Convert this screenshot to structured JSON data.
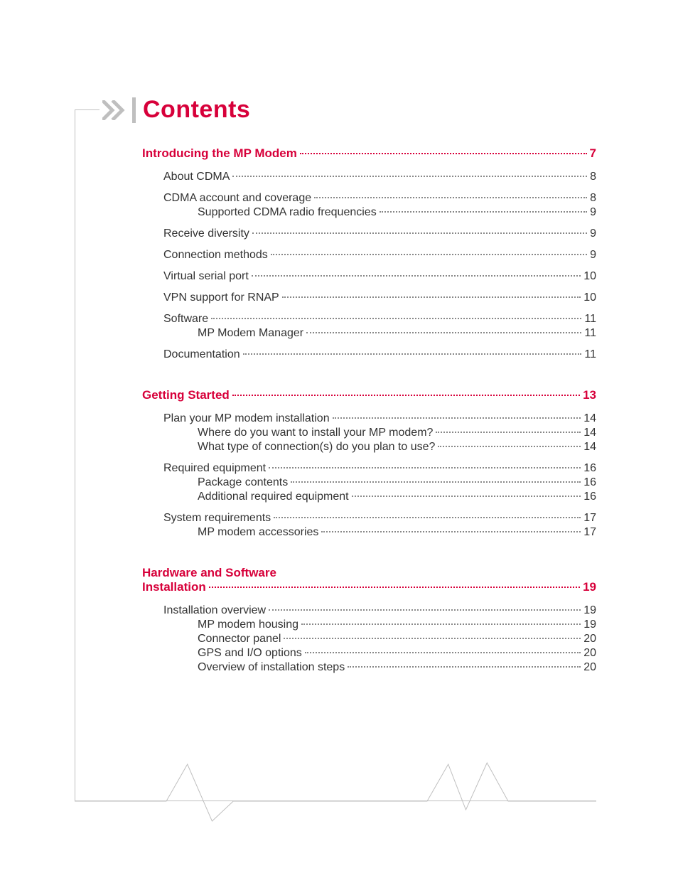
{
  "title": "Contents",
  "accent_color": "#d7003a",
  "text_color": "#333333",
  "rule_color": "#bfbfbf",
  "sections": [
    {
      "heading_lines": [
        "Introducing the MP Modem"
      ],
      "page": "7",
      "entries": [
        {
          "level": 1,
          "label": "About CDMA",
          "page": "8",
          "group_start": true
        },
        {
          "level": 1,
          "label": "CDMA account and coverage",
          "page": "8",
          "group_start": true
        },
        {
          "level": 2,
          "label": "Supported CDMA radio frequencies",
          "page": "9"
        },
        {
          "level": 1,
          "label": "Receive diversity",
          "page": "9",
          "group_start": true
        },
        {
          "level": 1,
          "label": "Connection methods",
          "page": "9",
          "group_start": true
        },
        {
          "level": 1,
          "label": "Virtual serial port",
          "page": "10",
          "group_start": true
        },
        {
          "level": 1,
          "label": "VPN support for RNAP",
          "page": "10",
          "group_start": true
        },
        {
          "level": 1,
          "label": "Software",
          "page": "11",
          "group_start": true
        },
        {
          "level": 2,
          "label": "MP Modem Manager",
          "page": "11"
        },
        {
          "level": 1,
          "label": "Documentation",
          "page": "11",
          "group_start": true
        }
      ]
    },
    {
      "heading_lines": [
        "Getting Started"
      ],
      "page": "13",
      "entries": [
        {
          "level": 1,
          "label": "Plan your MP modem installation",
          "page": "14",
          "group_start": true
        },
        {
          "level": 2,
          "label": "Where do you want to install your MP modem?",
          "page": "14"
        },
        {
          "level": 2,
          "label": "What type of connection(s) do you plan to use?",
          "page": "14"
        },
        {
          "level": 1,
          "label": "Required equipment",
          "page": "16",
          "group_start": true
        },
        {
          "level": 2,
          "label": "Package contents",
          "page": "16"
        },
        {
          "level": 2,
          "label": "Additional required equipment",
          "page": "16"
        },
        {
          "level": 1,
          "label": "System requirements",
          "page": "17",
          "group_start": true
        },
        {
          "level": 2,
          "label": "MP modem accessories",
          "page": "17"
        }
      ]
    },
    {
      "heading_lines": [
        "Hardware and Software",
        "Installation"
      ],
      "page": "19",
      "entries": [
        {
          "level": 1,
          "label": "Installation overview",
          "page": "19",
          "group_start": true
        },
        {
          "level": 2,
          "label": "MP modem housing",
          "page": "19"
        },
        {
          "level": 2,
          "label": "Connector panel",
          "page": "20"
        },
        {
          "level": 2,
          "label": "GPS and I/O options",
          "page": "20"
        },
        {
          "level": 2,
          "label": "Overview of installation steps",
          "page": "20"
        }
      ]
    }
  ]
}
